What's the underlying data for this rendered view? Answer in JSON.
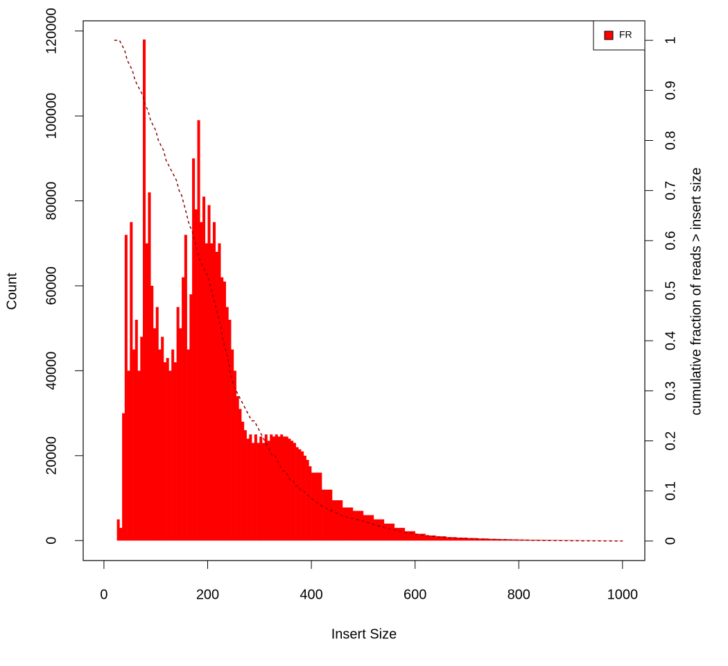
{
  "chart_data": {
    "type": "bar",
    "x_label": "Insert Size",
    "y_label": "Count",
    "y2_label": "cumulative fraction of reads > insert size",
    "x": [
      20,
      25,
      30,
      35,
      40,
      45,
      50,
      55,
      60,
      65,
      70,
      75,
      80,
      85,
      90,
      95,
      100,
      105,
      110,
      115,
      120,
      125,
      130,
      135,
      140,
      145,
      150,
      155,
      160,
      165,
      170,
      175,
      180,
      185,
      190,
      195,
      200,
      205,
      210,
      215,
      220,
      225,
      230,
      235,
      240,
      245,
      250,
      255,
      260,
      265,
      270,
      275,
      280,
      285,
      290,
      295,
      300,
      305,
      310,
      315,
      320,
      325,
      330,
      335,
      340,
      345,
      350,
      355,
      360,
      365,
      370,
      375,
      380,
      385,
      390,
      395,
      400,
      420,
      440,
      460,
      480,
      500,
      520,
      540,
      560,
      580,
      600,
      620,
      640,
      660,
      680,
      700,
      720,
      740,
      760,
      780,
      800,
      820,
      840,
      860,
      880,
      900,
      920,
      940,
      960,
      980,
      1000
    ],
    "series": [
      {
        "name": "FR",
        "color": "#ff0000",
        "type": "bar",
        "values": [
          0,
          5000,
          3000,
          30000,
          72000,
          40000,
          75000,
          45000,
          52000,
          40000,
          48000,
          118000,
          70000,
          82000,
          60000,
          50000,
          55000,
          45000,
          48000,
          42000,
          43000,
          40000,
          45000,
          42000,
          55000,
          50000,
          62000,
          72000,
          45000,
          58000,
          90000,
          78000,
          99000,
          75000,
          81000,
          70000,
          79000,
          70000,
          75000,
          68000,
          70000,
          62000,
          61000,
          55000,
          52000,
          45000,
          40000,
          34000,
          31000,
          28000,
          26000,
          24000,
          25000,
          23000,
          25000,
          23000,
          24500,
          23000,
          25000,
          23500,
          25000,
          24500,
          25000,
          24500,
          25000,
          24500,
          24500,
          24000,
          23500,
          23000,
          22000,
          21500,
          21000,
          20000,
          19000,
          17500,
          16000,
          12000,
          9500,
          7800,
          7000,
          6000,
          5000,
          4000,
          3000,
          2200,
          1600,
          1200,
          1000,
          800,
          700,
          600,
          500,
          400,
          330,
          280,
          230,
          190,
          160,
          130,
          110,
          90,
          70,
          60,
          50,
          40,
          30
        ]
      },
      {
        "color": "#8b0000",
        "type": "line",
        "dashed": true,
        "axis": "y2",
        "values": [
          1,
          1,
          1,
          0.99,
          0.98,
          0.96,
          0.95,
          0.94,
          0.92,
          0.91,
          0.9,
          0.89,
          0.87,
          0.86,
          0.84,
          0.83,
          0.82,
          0.8,
          0.79,
          0.78,
          0.76,
          0.75,
          0.74,
          0.73,
          0.72,
          0.7,
          0.69,
          0.67,
          0.65,
          0.63,
          0.62,
          0.6,
          0.58,
          0.56,
          0.55,
          0.54,
          0.53,
          0.51,
          0.49,
          0.47,
          0.45,
          0.43,
          0.4,
          0.38,
          0.36,
          0.33,
          0.31,
          0.3,
          0.29,
          0.28,
          0.27,
          0.26,
          0.25,
          0.24,
          0.24,
          0.23,
          0.22,
          0.21,
          0.2,
          0.19,
          0.18,
          0.17,
          0.17,
          0.16,
          0.15,
          0.14,
          0.14,
          0.13,
          0.12,
          0.12,
          0.11,
          0.11,
          0.1,
          0.1,
          0.095,
          0.09,
          0.085,
          0.07,
          0.06,
          0.05,
          0.045,
          0.04,
          0.033,
          0.027,
          0.022,
          0.017,
          0.014,
          0.011,
          0.009,
          0.007,
          0.006,
          0.005,
          0.004,
          0.0035,
          0.003,
          0.0025,
          0.002,
          0.0016,
          0.0013,
          0.001,
          0.0008,
          0.0006,
          0.0004,
          0.0003,
          0.0002,
          0.0001,
          0
        ]
      }
    ],
    "xlim": [
      -40,
      1043
    ],
    "xticks": [
      0,
      200,
      400,
      600,
      800,
      1000
    ],
    "ylim": [
      -4700,
      122400
    ],
    "yticks": [
      0,
      20000,
      40000,
      60000,
      80000,
      100000,
      120000
    ],
    "y2lim": [
      -0.039,
      1.039
    ],
    "y2ticks": [
      0,
      0.1,
      0.2,
      0.3,
      0.4,
      0.5,
      0.6,
      0.7,
      0.8,
      0.9,
      1
    ],
    "legend": "topright",
    "grid": false
  }
}
